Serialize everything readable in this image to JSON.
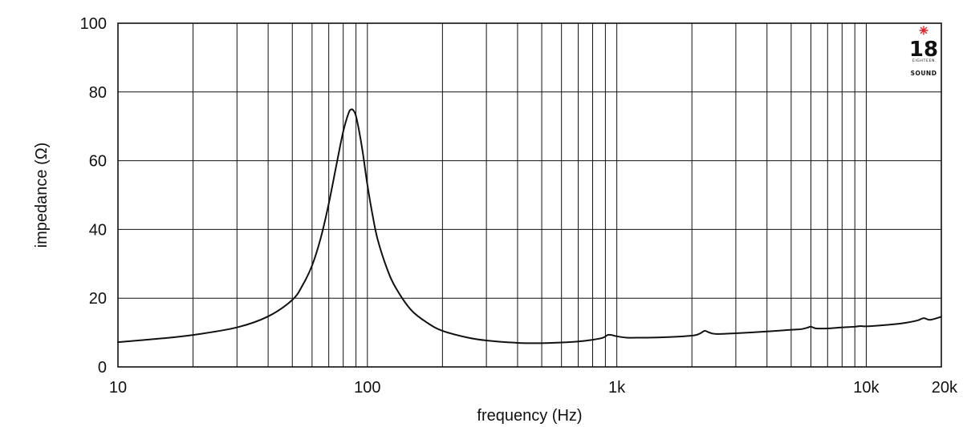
{
  "chart_data": {
    "type": "line",
    "xscale": "log",
    "xlim": [
      10,
      20000
    ],
    "ylim": [
      0,
      100
    ],
    "xlabel": "frequency (Hz)",
    "ylabel": "impedance (Ω)",
    "grid": true,
    "yticks": [
      {
        "value": 0,
        "label": "0"
      },
      {
        "value": 20,
        "label": "20"
      },
      {
        "value": 40,
        "label": "40"
      },
      {
        "value": 60,
        "label": "60"
      },
      {
        "value": 80,
        "label": "80"
      },
      {
        "value": 100,
        "label": "100"
      }
    ],
    "xticks": [
      {
        "value": 10,
        "label": "10"
      },
      {
        "value": 100,
        "label": "100"
      },
      {
        "value": 1000,
        "label": "1k"
      },
      {
        "value": 10000,
        "label": "10k"
      },
      {
        "value": 20000,
        "label": "20k"
      }
    ],
    "xgrid": [
      20,
      30,
      40,
      50,
      60,
      70,
      80,
      90,
      100,
      200,
      300,
      400,
      500,
      600,
      700,
      800,
      900,
      1000,
      2000,
      3000,
      4000,
      5000,
      6000,
      7000,
      8000,
      9000,
      10000
    ],
    "series": [
      {
        "x": [
          10,
          15,
          20,
          30,
          40,
          50,
          55,
          60,
          65,
          70,
          75,
          80,
          84,
          86,
          88,
          90,
          93,
          96,
          100,
          105,
          110,
          120,
          130,
          150,
          175,
          200,
          250,
          300,
          400,
          500,
          600,
          700,
          800,
          880,
          920,
          950,
          1000,
          1100,
          1200,
          1500,
          2000,
          2150,
          2250,
          2350,
          2500,
          3000,
          4000,
          5000,
          5500,
          5800,
          6000,
          6300,
          7000,
          8000,
          9000,
          9500,
          10000,
          12000,
          14000,
          16000,
          17000,
          18000,
          20000
        ],
        "y": [
          7.2,
          8.3,
          9.3,
          11.5,
          14.7,
          19.5,
          23.8,
          29.5,
          37.5,
          47.5,
          58.5,
          68.5,
          73.8,
          74.9,
          74.6,
          73,
          68,
          62,
          53,
          44,
          37,
          28.5,
          23,
          16.5,
          12.7,
          10.5,
          8.6,
          7.7,
          7,
          6.9,
          7.1,
          7.4,
          7.9,
          8.5,
          9.3,
          9.3,
          8.9,
          8.5,
          8.5,
          8.6,
          9.1,
          9.7,
          10.5,
          10,
          9.6,
          9.8,
          10.3,
          10.8,
          11,
          11.4,
          11.7,
          11.2,
          11.2,
          11.5,
          11.7,
          11.9,
          11.8,
          12.2,
          12.7,
          13.5,
          14.2,
          13.7,
          14.6
        ]
      }
    ]
  },
  "logo": {
    "number": "18",
    "tagline": "EIGHTEEN",
    "word": "SOUND",
    "accent": "#d8232a"
  }
}
